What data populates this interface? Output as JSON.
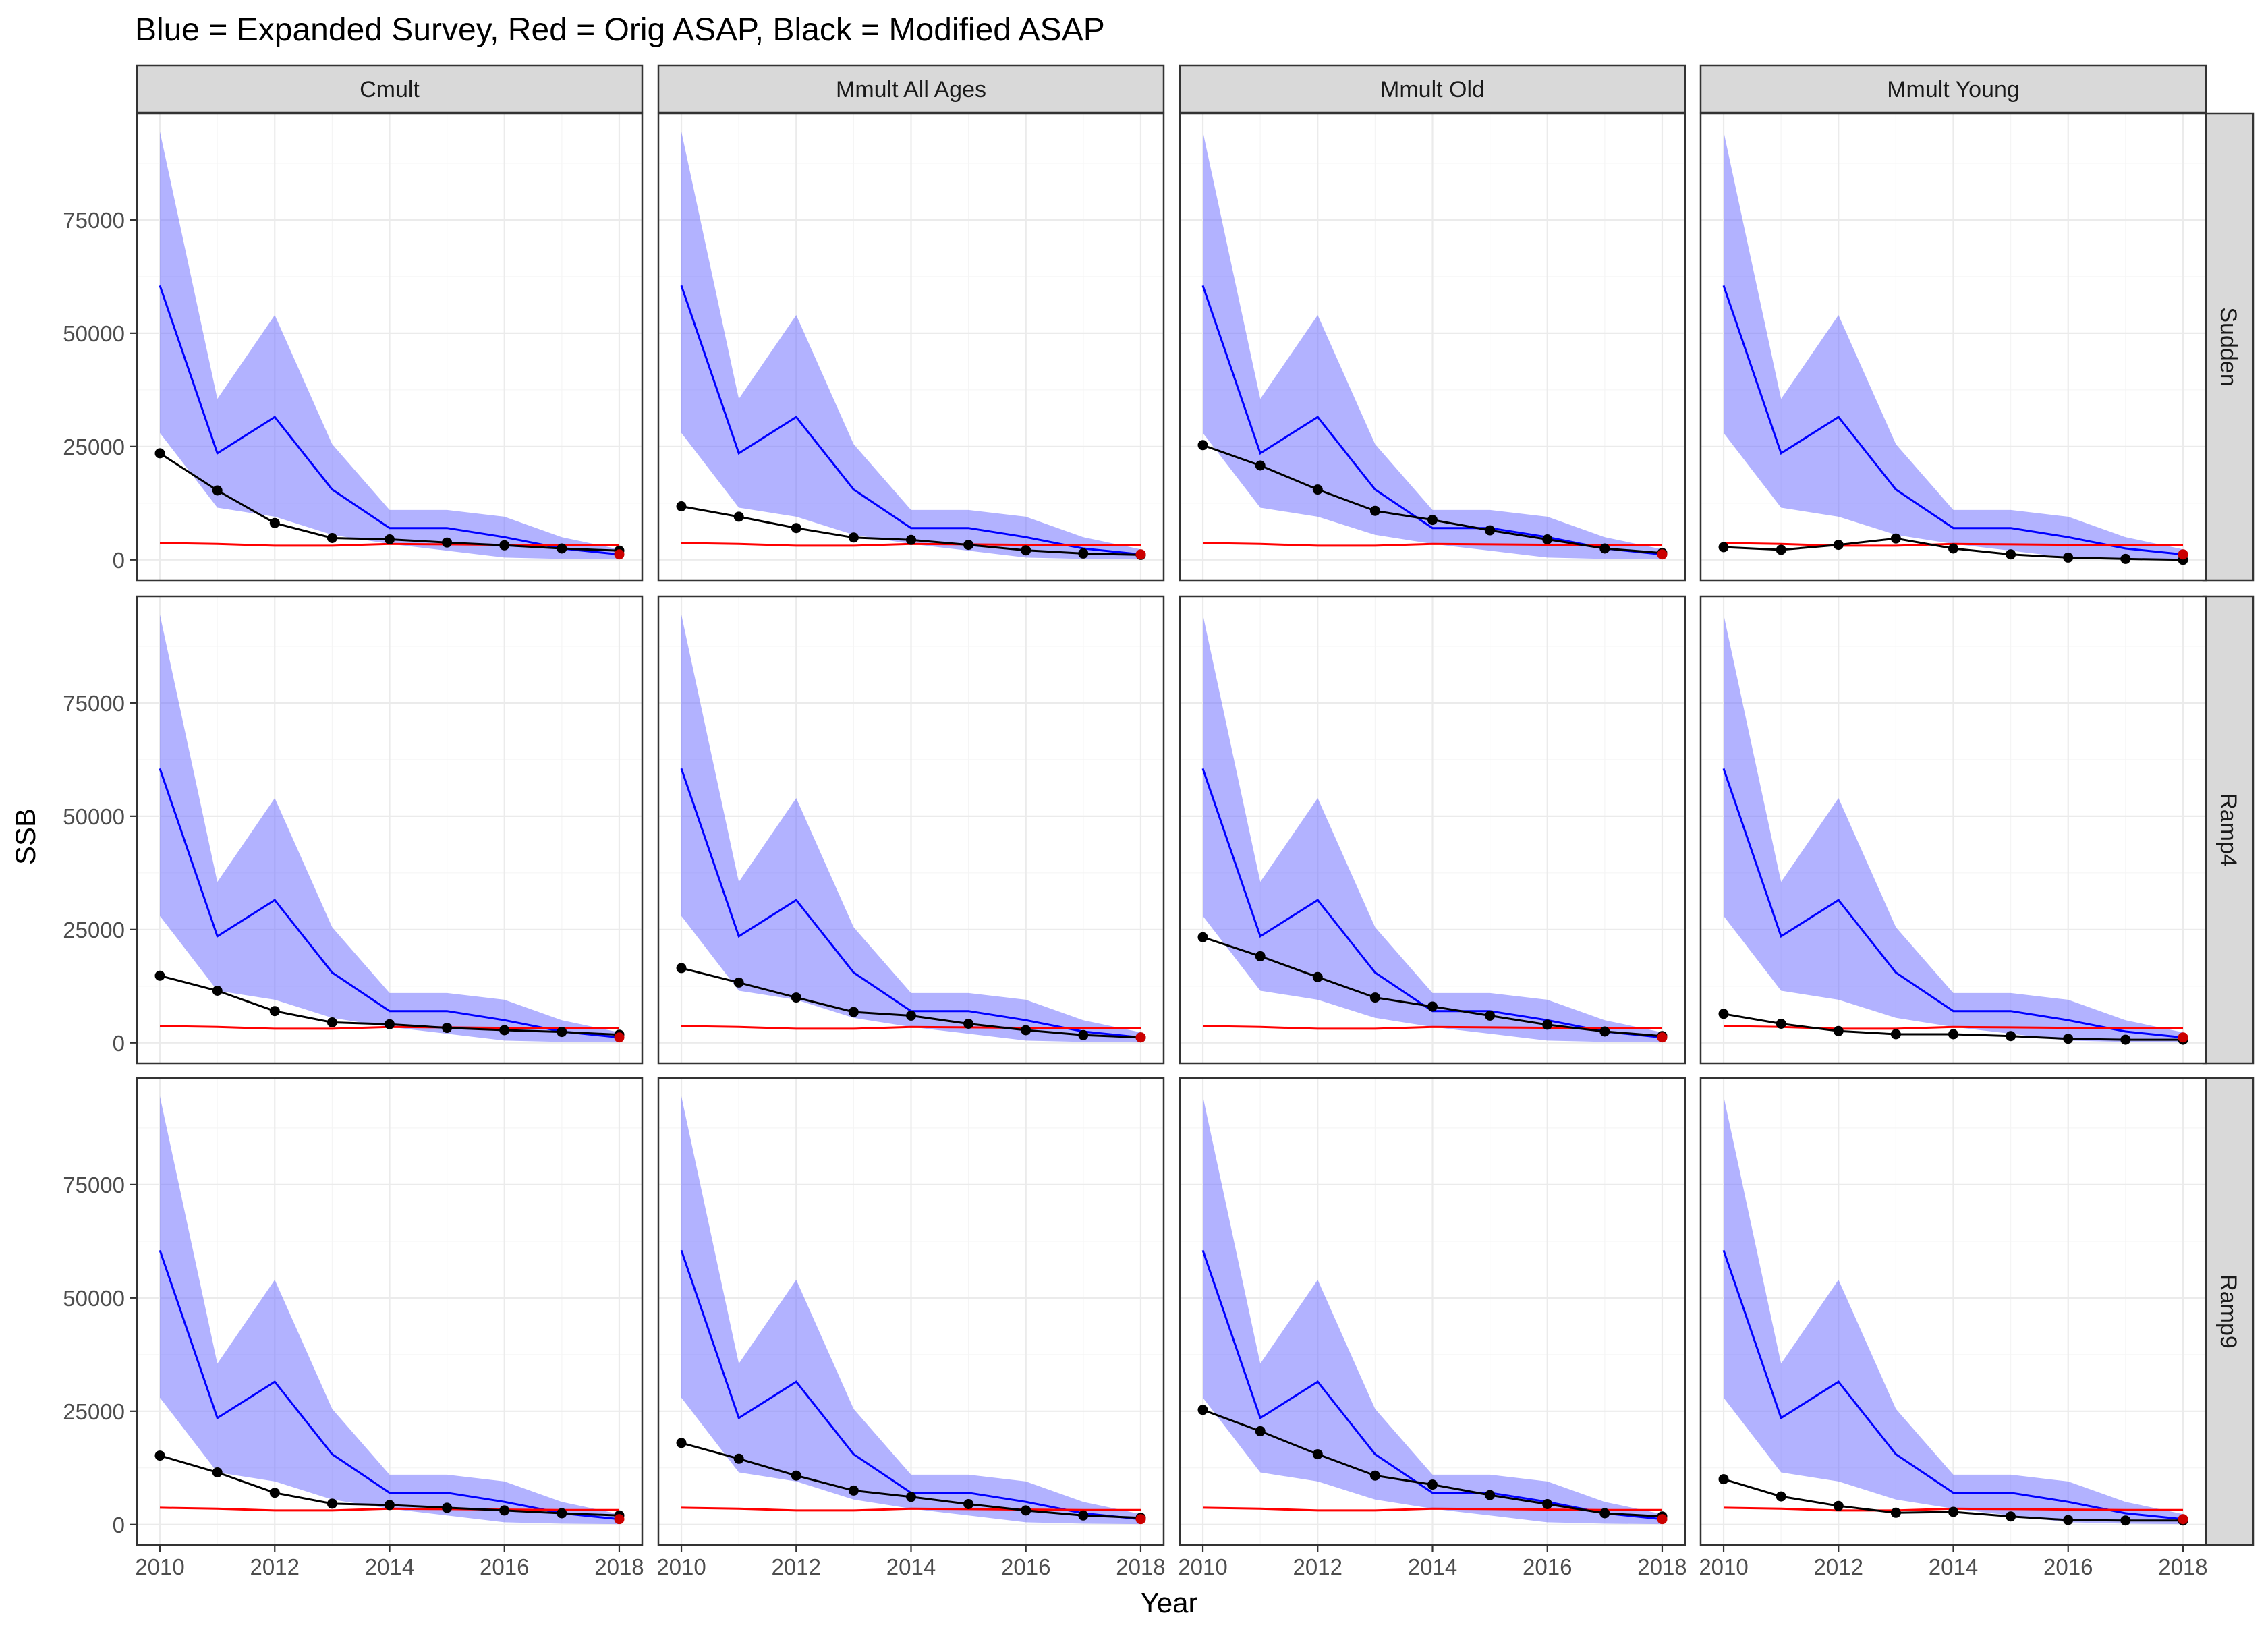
{
  "chart_data": {
    "type": "line",
    "title": "Blue = Expanded Survey, Red = Orig ASAP, Black = Modified ASAP",
    "xlabel": "Year",
    "ylabel": "SSB",
    "x": [
      2010,
      2011,
      2012,
      2013,
      2014,
      2015,
      2016,
      2017,
      2018
    ],
    "x_ticks": [
      2010,
      2012,
      2014,
      2016,
      2018
    ],
    "y_ticks": [
      0,
      25000,
      50000,
      75000
    ],
    "ylim": [
      -4500,
      98500
    ],
    "xlim": [
      2009.6,
      2018.4
    ],
    "grid": true,
    "columns": [
      "Cmult",
      "Mmult All Ages",
      "Mmult Old",
      "Mmult Young"
    ],
    "rows": [
      "Sudden",
      "Ramp4",
      "Ramp9"
    ],
    "colors": {
      "expanded_survey": "#0000ff",
      "expanded_survey_band": "#6666ff",
      "orig_asap": "#ff0000",
      "modified_asap": "#000000",
      "endpoint": "#cc0000"
    },
    "common_series": {
      "expanded_survey": {
        "values": [
          60500,
          23500,
          31500,
          15500,
          7000,
          7000,
          5000,
          2500,
          1200
        ],
        "lower": [
          28000,
          11500,
          9500,
          5500,
          3500,
          2000,
          500,
          200,
          100
        ],
        "upper": [
          94500,
          35500,
          54000,
          25500,
          11000,
          11000,
          9500,
          5000,
          2300
        ]
      },
      "orig_asap": {
        "values": [
          3700,
          3500,
          3100,
          3100,
          3500,
          3400,
          3300,
          3200,
          3200
        ]
      }
    },
    "modified_asap": {
      "Sudden": {
        "Cmult": [
          23500,
          15300,
          8100,
          4800,
          4500,
          3800,
          3200,
          2500,
          2000
        ],
        "Mmult All Ages": [
          11800,
          9500,
          7000,
          4900,
          4400,
          3300,
          2100,
          1400,
          1100
        ],
        "Mmult Old": [
          25300,
          20800,
          15500,
          10800,
          8800,
          6500,
          4500,
          2500,
          1500
        ],
        "Mmult Young": [
          2800,
          2200,
          3300,
          4700,
          2500,
          1200,
          500,
          200,
          0
        ]
      },
      "Ramp4": {
        "Cmult": [
          14800,
          11500,
          7000,
          4500,
          4100,
          3300,
          2800,
          2400,
          1800
        ],
        "Mmult All Ages": [
          16500,
          13300,
          10000,
          6800,
          6000,
          4200,
          2800,
          1700,
          1200
        ],
        "Mmult Old": [
          23300,
          19100,
          14500,
          10000,
          8000,
          6000,
          4000,
          2500,
          1500
        ],
        "Mmult Young": [
          6400,
          4200,
          2600,
          1900,
          1900,
          1500,
          900,
          700,
          700
        ]
      },
      "Ramp9": {
        "Cmult": [
          15200,
          11500,
          7000,
          4600,
          4300,
          3700,
          3100,
          2500,
          2000
        ],
        "Mmult All Ages": [
          18000,
          14500,
          10800,
          7500,
          6100,
          4500,
          3100,
          2000,
          1500
        ],
        "Mmult Old": [
          25300,
          20600,
          15500,
          10800,
          8800,
          6500,
          4500,
          2500,
          1800
        ],
        "Mmult Young": [
          10000,
          6200,
          4100,
          2600,
          2800,
          1800,
          1000,
          900,
          900
        ]
      }
    }
  }
}
